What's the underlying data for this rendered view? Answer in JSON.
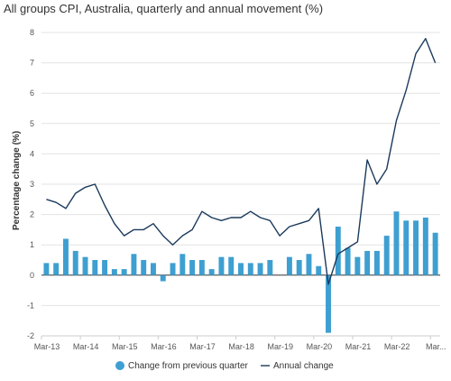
{
  "chart_data": {
    "type": "bar",
    "title": "All groups CPI, Australia, quarterly and annual movement (%)",
    "ylabel": "Percentage change (%)",
    "xlabel": "",
    "ylim": [
      -2,
      8
    ],
    "yticks": [
      -2,
      -1,
      0,
      1,
      2,
      3,
      4,
      5,
      6,
      7,
      8
    ],
    "x_tick_labels": [
      "Mar-13",
      "Mar-14",
      "Mar-15",
      "Mar-16",
      "Mar-17",
      "Mar-18",
      "Mar-19",
      "Mar-20",
      "Mar-21",
      "Mar-22",
      "Mar..."
    ],
    "grid": "horizontal",
    "legend_position": "bottom",
    "colors": {
      "bar": "#3e9fd1",
      "line": "#1b3a5c",
      "zero_line": "#333333"
    },
    "categories": [
      "Mar-13",
      "Jun-13",
      "Sep-13",
      "Dec-13",
      "Mar-14",
      "Jun-14",
      "Sep-14",
      "Dec-14",
      "Mar-15",
      "Jun-15",
      "Sep-15",
      "Dec-15",
      "Mar-16",
      "Jun-16",
      "Sep-16",
      "Dec-16",
      "Mar-17",
      "Jun-17",
      "Sep-17",
      "Dec-17",
      "Mar-18",
      "Jun-18",
      "Sep-18",
      "Dec-18",
      "Mar-19",
      "Jun-19",
      "Sep-19",
      "Dec-19",
      "Mar-20",
      "Jun-20",
      "Sep-20",
      "Dec-20",
      "Mar-21",
      "Jun-21",
      "Sep-21",
      "Dec-21",
      "Mar-22",
      "Jun-22",
      "Sep-22",
      "Dec-22",
      "Mar-23"
    ],
    "series": [
      {
        "name": "Change from previous quarter",
        "kind": "bar",
        "values": [
          0.4,
          0.4,
          1.2,
          0.8,
          0.6,
          0.5,
          0.5,
          0.2,
          0.2,
          0.7,
          0.5,
          0.4,
          -0.2,
          0.4,
          0.7,
          0.5,
          0.5,
          0.2,
          0.6,
          0.6,
          0.4,
          0.4,
          0.4,
          0.5,
          0.0,
          0.6,
          0.5,
          0.7,
          0.3,
          -1.9,
          1.6,
          0.9,
          0.6,
          0.8,
          0.8,
          1.3,
          2.1,
          1.8,
          1.8,
          1.9,
          1.4
        ]
      },
      {
        "name": "Annual change",
        "kind": "line",
        "values": [
          2.5,
          2.4,
          2.2,
          2.7,
          2.9,
          3.0,
          2.3,
          1.7,
          1.3,
          1.5,
          1.5,
          1.7,
          1.3,
          1.0,
          1.3,
          1.5,
          2.1,
          1.9,
          1.8,
          1.9,
          1.9,
          2.1,
          1.9,
          1.8,
          1.3,
          1.6,
          1.7,
          1.8,
          2.2,
          -0.3,
          0.7,
          0.9,
          1.1,
          3.8,
          3.0,
          3.5,
          5.1,
          6.1,
          7.3,
          7.8,
          7.0
        ]
      }
    ]
  }
}
